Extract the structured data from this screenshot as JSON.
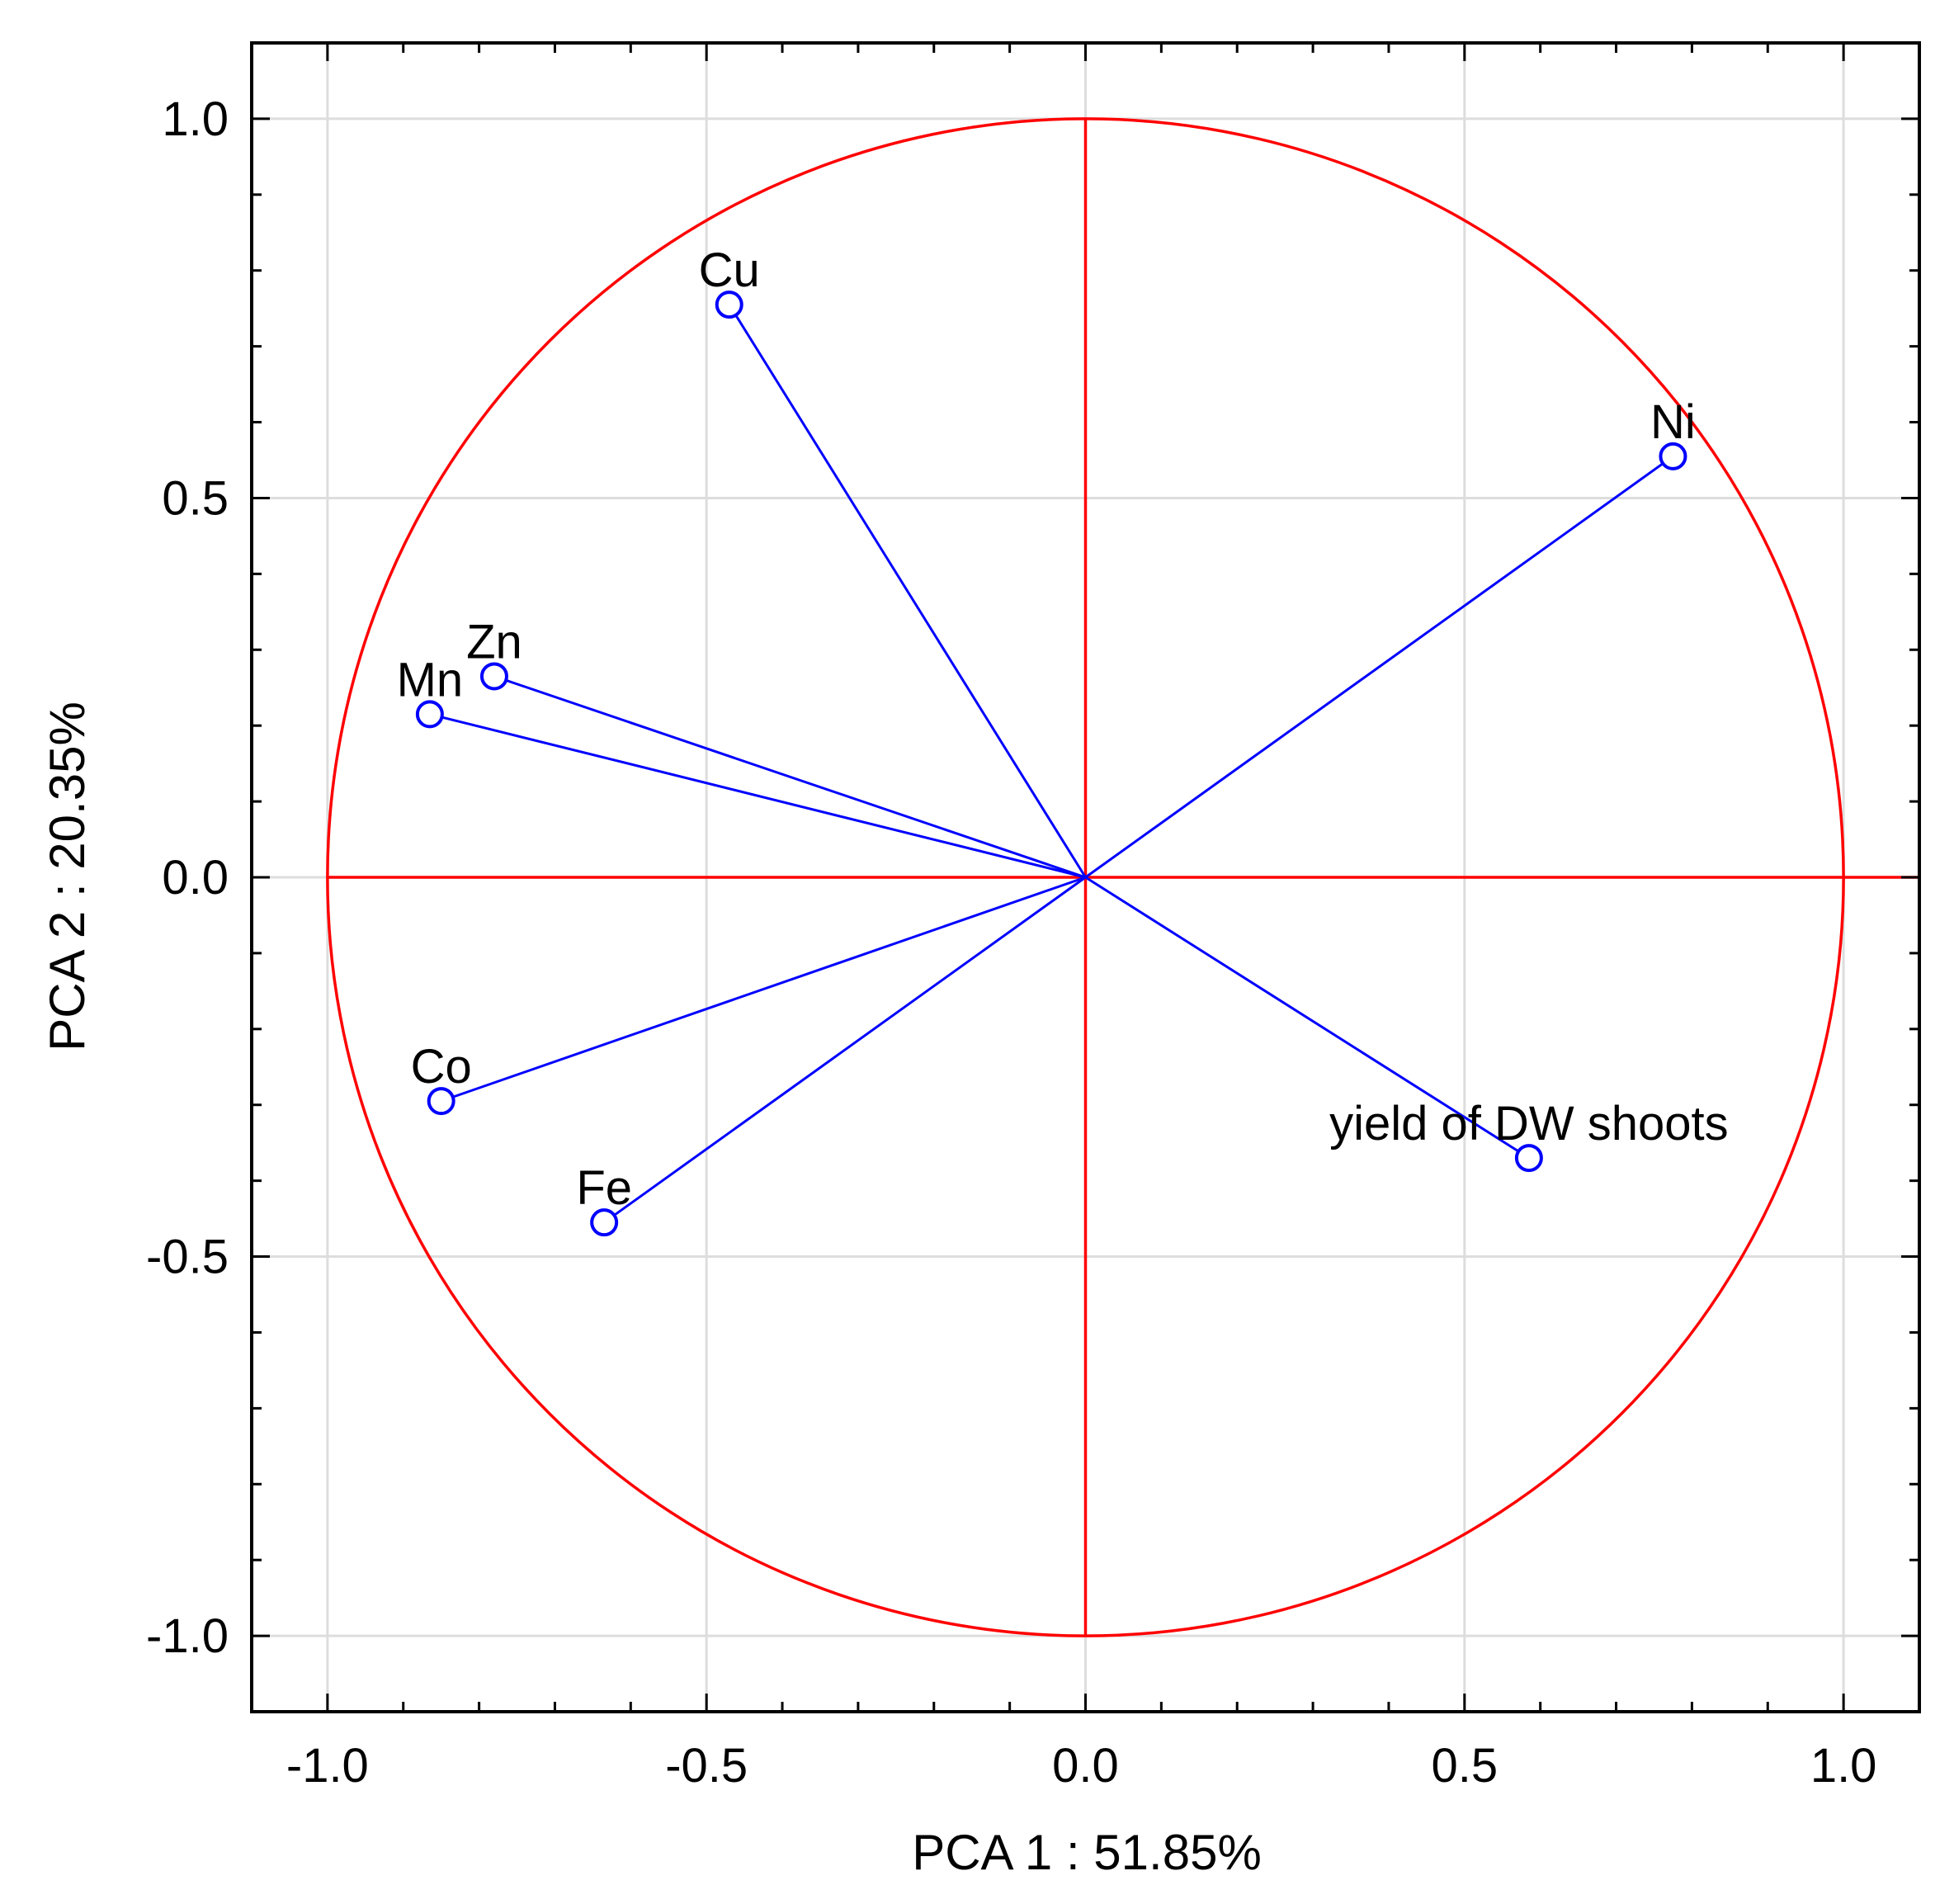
{
  "chart_data": {
    "type": "scatter",
    "subtype": "pca-correlation-circle",
    "xlabel": "PCA 1 : 51.85%",
    "ylabel": "PCA 2 : 20.35%",
    "xlim": [
      -1.1,
      1.1
    ],
    "ylim": [
      -1.1,
      1.1
    ],
    "xticks": [
      -1.0,
      -0.5,
      0.0,
      0.5,
      1.0
    ],
    "yticks": [
      -1.0,
      -0.5,
      0.0,
      0.5,
      1.0
    ],
    "xtick_labels": [
      "-1.0",
      "-0.5",
      "0.0",
      "0.5",
      "1.0"
    ],
    "ytick_labels": [
      "-1.0",
      "-0.5",
      "0.0",
      "0.5",
      "1.0"
    ],
    "minor_tick_step": 0.1,
    "grid": true,
    "circle_radius": 1.0,
    "colors": {
      "circle": "#ff0000",
      "vectors": "#0000ff",
      "grid": "#dddddd",
      "frame": "#000000"
    },
    "points": [
      {
        "label": "Cu",
        "x": -0.47,
        "y": 0.755,
        "label_pos": "above"
      },
      {
        "label": "Ni",
        "x": 0.775,
        "y": 0.555,
        "label_pos": "above"
      },
      {
        "label": "Zn",
        "x": -0.78,
        "y": 0.265,
        "label_pos": "above"
      },
      {
        "label": "Mn",
        "x": -0.865,
        "y": 0.215,
        "label_pos": "above"
      },
      {
        "label": "Co",
        "x": -0.85,
        "y": -0.295,
        "label_pos": "above"
      },
      {
        "label": "Fe",
        "x": -0.635,
        "y": -0.455,
        "label_pos": "above"
      },
      {
        "label": "yield of DW shoots",
        "x": 0.585,
        "y": -0.37,
        "label_pos": "above"
      }
    ]
  }
}
